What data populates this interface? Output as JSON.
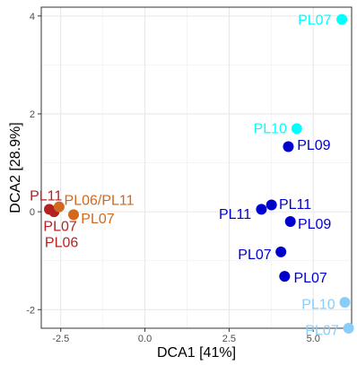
{
  "chart_data": {
    "type": "scatter",
    "title": "",
    "xlabel": "DCA1   [41%]",
    "ylabel": "DCA2   [28.9%]",
    "xlim": [
      -3.08,
      6.14
    ],
    "ylim": [
      -2.38,
      4.18
    ],
    "xticks": [
      -2.5,
      0.0,
      2.5,
      5.0
    ],
    "xtick_labels": [
      "-2.5",
      "0.0",
      "2.5",
      "5.0"
    ],
    "yticks": [
      -2,
      0,
      2,
      4
    ],
    "ytick_labels": [
      "-2",
      "0",
      "2",
      "4"
    ],
    "grid": true,
    "legend": "none",
    "points": [
      {
        "x": 5.85,
        "y": 3.93,
        "color": "#00ffff"
      },
      {
        "x": 4.51,
        "y": 1.7,
        "color": "#00ffff"
      },
      {
        "x": 4.26,
        "y": 1.33,
        "color": "#0000cc"
      },
      {
        "x": 3.76,
        "y": 0.14,
        "color": "#0000cc"
      },
      {
        "x": 3.46,
        "y": 0.05,
        "color": "#0000cc"
      },
      {
        "x": 4.32,
        "y": -0.2,
        "color": "#0000cc"
      },
      {
        "x": 4.04,
        "y": -0.82,
        "color": "#0000cc"
      },
      {
        "x": 4.15,
        "y": -1.32,
        "color": "#0000cc"
      },
      {
        "x": 5.94,
        "y": -1.85,
        "color": "#87cefa"
      },
      {
        "x": 6.05,
        "y": -2.38,
        "color": "#87cefa"
      },
      {
        "x": -2.84,
        "y": 0.05,
        "color": "#b22222"
      },
      {
        "x": -2.7,
        "y": 0.0,
        "color": "#b22222"
      },
      {
        "x": -2.55,
        "y": 0.1,
        "color": "#d2691e"
      },
      {
        "x": -2.12,
        "y": -0.06,
        "color": "#d2691e"
      }
    ],
    "labels": [
      {
        "text": "PL07",
        "x": 5.54,
        "y": 3.93,
        "anchor": "end",
        "color": "#00ffff"
      },
      {
        "text": "PL10",
        "x": 4.22,
        "y": 1.72,
        "anchor": "end",
        "color": "#00ffff"
      },
      {
        "text": "PL09",
        "x": 4.52,
        "y": 1.38,
        "anchor": "start",
        "color": "#0000cc"
      },
      {
        "text": "PL11",
        "x": 3.98,
        "y": 0.17,
        "anchor": "start",
        "color": "#0000cc"
      },
      {
        "text": "PL11",
        "x": 3.16,
        "y": -0.03,
        "anchor": "end",
        "color": "#0000cc"
      },
      {
        "text": "PL09",
        "x": 4.54,
        "y": -0.24,
        "anchor": "start",
        "color": "#0000cc"
      },
      {
        "text": "PL07",
        "x": 3.76,
        "y": -0.86,
        "anchor": "end",
        "color": "#0000cc"
      },
      {
        "text": "PL07",
        "x": 4.42,
        "y": -1.34,
        "anchor": "start",
        "color": "#0000cc"
      },
      {
        "text": "PL10",
        "x": 5.65,
        "y": -1.88,
        "anchor": "end",
        "color": "#87cefa"
      },
      {
        "text": "PL07",
        "x": 5.76,
        "y": -2.41,
        "anchor": "end",
        "color": "#87cefa"
      },
      {
        "text": "PL11",
        "x": -2.46,
        "y": 0.34,
        "anchor": "end",
        "color": "#b22222"
      },
      {
        "text": "PL07",
        "x": -2.02,
        "y": -0.28,
        "anchor": "end",
        "color": "#b22222"
      },
      {
        "text": "PL06",
        "x": -1.98,
        "y": -0.61,
        "anchor": "end",
        "color": "#b22222"
      },
      {
        "text": "PL06/PL11",
        "x": -2.4,
        "y": 0.25,
        "anchor": "start",
        "color": "#d2691e"
      },
      {
        "text": "PL07",
        "x": -1.9,
        "y": -0.13,
        "anchor": "start",
        "color": "#d2691e"
      }
    ]
  }
}
